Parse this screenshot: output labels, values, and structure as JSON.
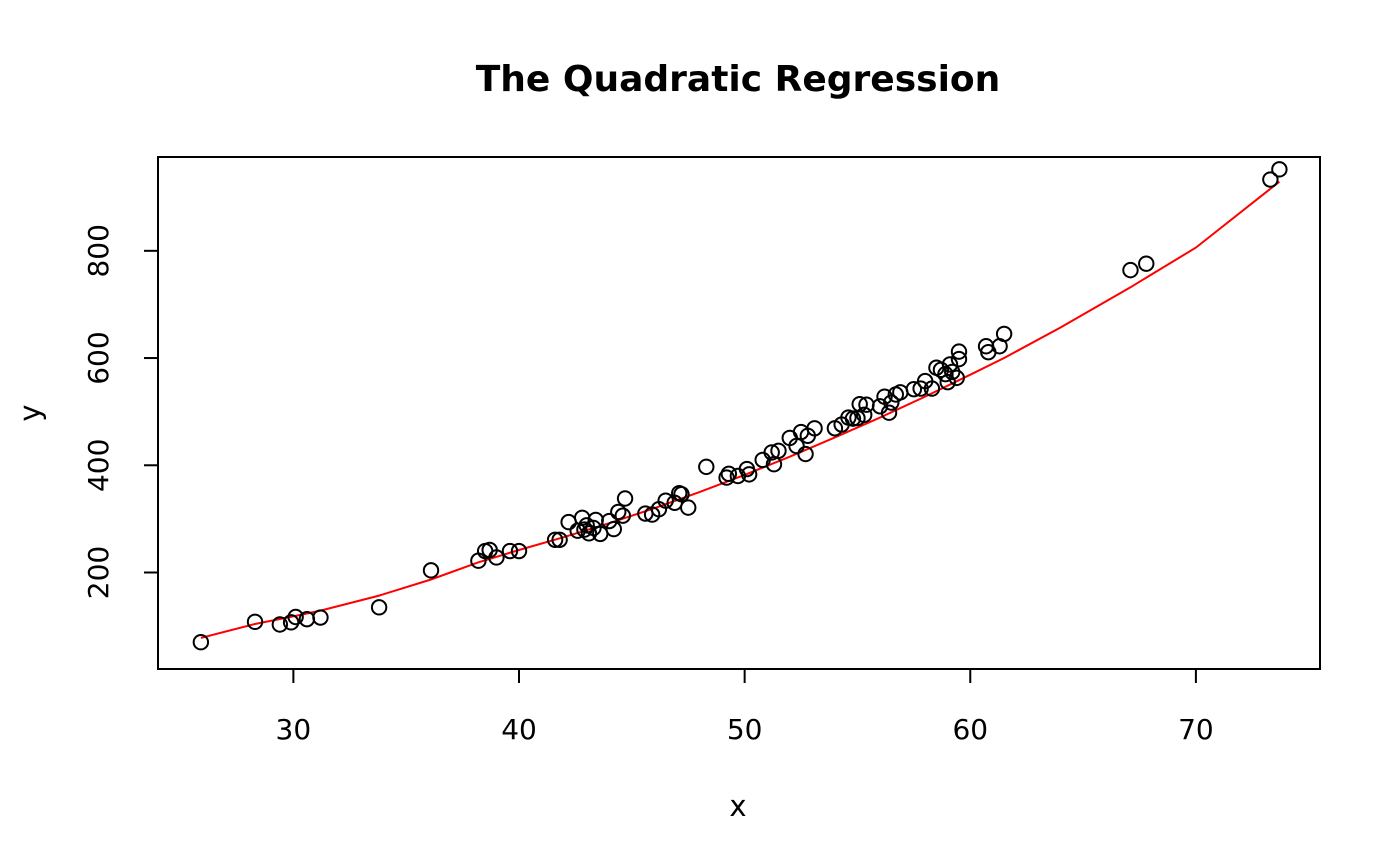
{
  "chart_data": {
    "type": "scatter",
    "title": "The Quadratic Regression",
    "xlabel": "x",
    "ylabel": "y",
    "xlim": [
      24,
      75.5
    ],
    "ylim": [
      20,
      975
    ],
    "xticks": [
      30,
      40,
      50,
      60,
      70
    ],
    "yticks": [
      200,
      400,
      600,
      800
    ],
    "grid": false,
    "legend": "none",
    "series": [
      {
        "type": "scatter",
        "marker": "open-circle",
        "color": "#000000",
        "points": [
          [
            25.9,
            70
          ],
          [
            28.3,
            108
          ],
          [
            29.4,
            103
          ],
          [
            29.9,
            107
          ],
          [
            30.1,
            117
          ],
          [
            30.6,
            113
          ],
          [
            31.2,
            116
          ],
          [
            33.8,
            135
          ],
          [
            36.1,
            204
          ],
          [
            38.2,
            222
          ],
          [
            38.5,
            240
          ],
          [
            38.7,
            242
          ],
          [
            39.0,
            228
          ],
          [
            39.6,
            240
          ],
          [
            40.0,
            240
          ],
          [
            41.6,
            261
          ],
          [
            41.8,
            261
          ],
          [
            42.2,
            294
          ],
          [
            42.6,
            278
          ],
          [
            42.8,
            302
          ],
          [
            42.9,
            280
          ],
          [
            43.0,
            288
          ],
          [
            43.1,
            273
          ],
          [
            43.3,
            283
          ],
          [
            43.4,
            298
          ],
          [
            43.6,
            272
          ],
          [
            44.0,
            296
          ],
          [
            44.2,
            281
          ],
          [
            44.4,
            313
          ],
          [
            44.6,
            306
          ],
          [
            44.7,
            338
          ],
          [
            45.6,
            310
          ],
          [
            45.9,
            308
          ],
          [
            46.2,
            318
          ],
          [
            46.5,
            334
          ],
          [
            46.9,
            330
          ],
          [
            47.1,
            348
          ],
          [
            47.2,
            346
          ],
          [
            47.5,
            321
          ],
          [
            48.3,
            397
          ],
          [
            49.2,
            377
          ],
          [
            49.3,
            384
          ],
          [
            49.7,
            380
          ],
          [
            50.1,
            393
          ],
          [
            50.2,
            383
          ],
          [
            50.8,
            410
          ],
          [
            51.2,
            424
          ],
          [
            51.3,
            402
          ],
          [
            51.5,
            427
          ],
          [
            52.0,
            451
          ],
          [
            52.3,
            436
          ],
          [
            52.5,
            462
          ],
          [
            52.7,
            421
          ],
          [
            52.8,
            455
          ],
          [
            53.1,
            469
          ],
          [
            54.0,
            469
          ],
          [
            54.3,
            476
          ],
          [
            54.6,
            489
          ],
          [
            54.8,
            487
          ],
          [
            55.0,
            488
          ],
          [
            55.1,
            514
          ],
          [
            55.3,
            494
          ],
          [
            55.4,
            513
          ],
          [
            56.0,
            510
          ],
          [
            56.2,
            528
          ],
          [
            56.4,
            498
          ],
          [
            56.5,
            517
          ],
          [
            56.7,
            532
          ],
          [
            56.9,
            536
          ],
          [
            57.5,
            542
          ],
          [
            57.8,
            543
          ],
          [
            58.0,
            557
          ],
          [
            58.3,
            543
          ],
          [
            58.5,
            582
          ],
          [
            58.7,
            578
          ],
          [
            58.9,
            570
          ],
          [
            59.0,
            555
          ],
          [
            59.1,
            588
          ],
          [
            59.2,
            574
          ],
          [
            59.4,
            563
          ],
          [
            59.5,
            612
          ],
          [
            59.5,
            598
          ],
          [
            60.7,
            622
          ],
          [
            60.8,
            611
          ],
          [
            61.3,
            622
          ],
          [
            61.5,
            645
          ],
          [
            67.1,
            764
          ],
          [
            67.8,
            776
          ],
          [
            73.3,
            933
          ],
          [
            73.7,
            952
          ]
        ]
      },
      {
        "type": "line",
        "color": "#ff0000",
        "x": [
          25.9,
          28.3,
          30.1,
          31.2,
          33.8,
          36.1,
          38.2,
          40.0,
          42.0,
          44.0,
          46.0,
          48.0,
          50.0,
          52.0,
          54.0,
          56.0,
          58.0,
          60.0,
          61.5,
          64.0,
          67.1,
          67.8,
          70.0,
          73.7
        ],
        "y": [
          78,
          104,
          119,
          129,
          157,
          187,
          219,
          242,
          266,
          292,
          320,
          350,
          382,
          416,
          452,
          489,
          528,
          569,
          600,
          657,
          732,
          750,
          806,
          929
        ]
      }
    ]
  }
}
